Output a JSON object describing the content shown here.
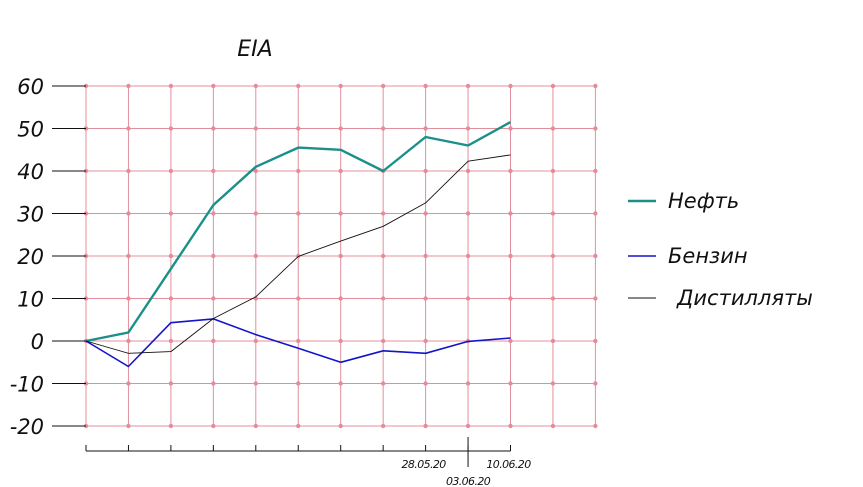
{
  "chart_data": {
    "type": "line",
    "title": "EIA",
    "xlabel": "",
    "ylabel": "",
    "ylim": [
      -20,
      60
    ],
    "yticks": [
      60,
      50,
      40,
      30,
      20,
      10,
      0,
      -10,
      -20
    ],
    "x_categories": 13,
    "x_tick_labels": [
      {
        "index": 8,
        "label": "28.05.20",
        "row": "upper"
      },
      {
        "index": 9,
        "label": "03.06.20",
        "row": "lower"
      },
      {
        "index": 10,
        "label": "10.06.20",
        "row": "upper"
      }
    ],
    "grid": true,
    "legend_position": "right",
    "series": [
      {
        "name": "Нефть",
        "color": "#1a9088",
        "width": 2.4,
        "values": [
          0,
          2,
          17,
          32,
          41,
          45.5,
          45,
          40,
          48,
          46,
          51.5
        ]
      },
      {
        "name": "Бензин",
        "color": "#1414c8",
        "width": 1.6,
        "values": [
          0,
          -6,
          4.3,
          5.2,
          1.5,
          -1.7,
          -5,
          -2.3,
          -2.9,
          -0.1,
          0.7
        ]
      },
      {
        "name": "Дистилляты",
        "color": "#111111",
        "width": 0.9,
        "values": [
          0,
          -2.9,
          -2.5,
          5.3,
          10.4,
          19.9,
          23.5,
          27,
          32.5,
          42.3,
          43.8
        ]
      }
    ]
  }
}
